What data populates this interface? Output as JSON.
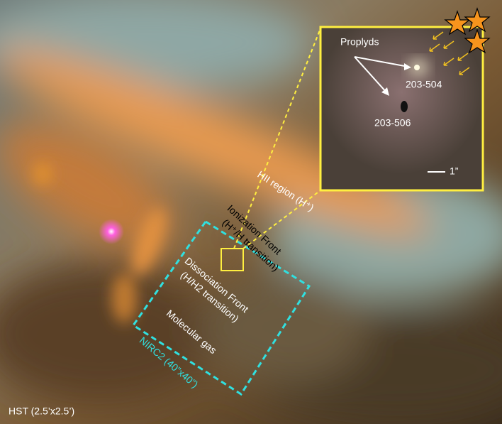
{
  "inset": {
    "label": "Proplyds",
    "objects": [
      "203-504",
      "203-506"
    ],
    "scale": "1”"
  },
  "regions": [
    "HII region (H⁺)",
    "Ionization Front",
    "(H⁺/H transition)",
    "Dissociation Front",
    "(H/H2 transition)",
    "Molecular gas"
  ],
  "field_label": "NIRC2 (40”x40”)",
  "image_label": "HST (2.5’x2.5’)"
}
